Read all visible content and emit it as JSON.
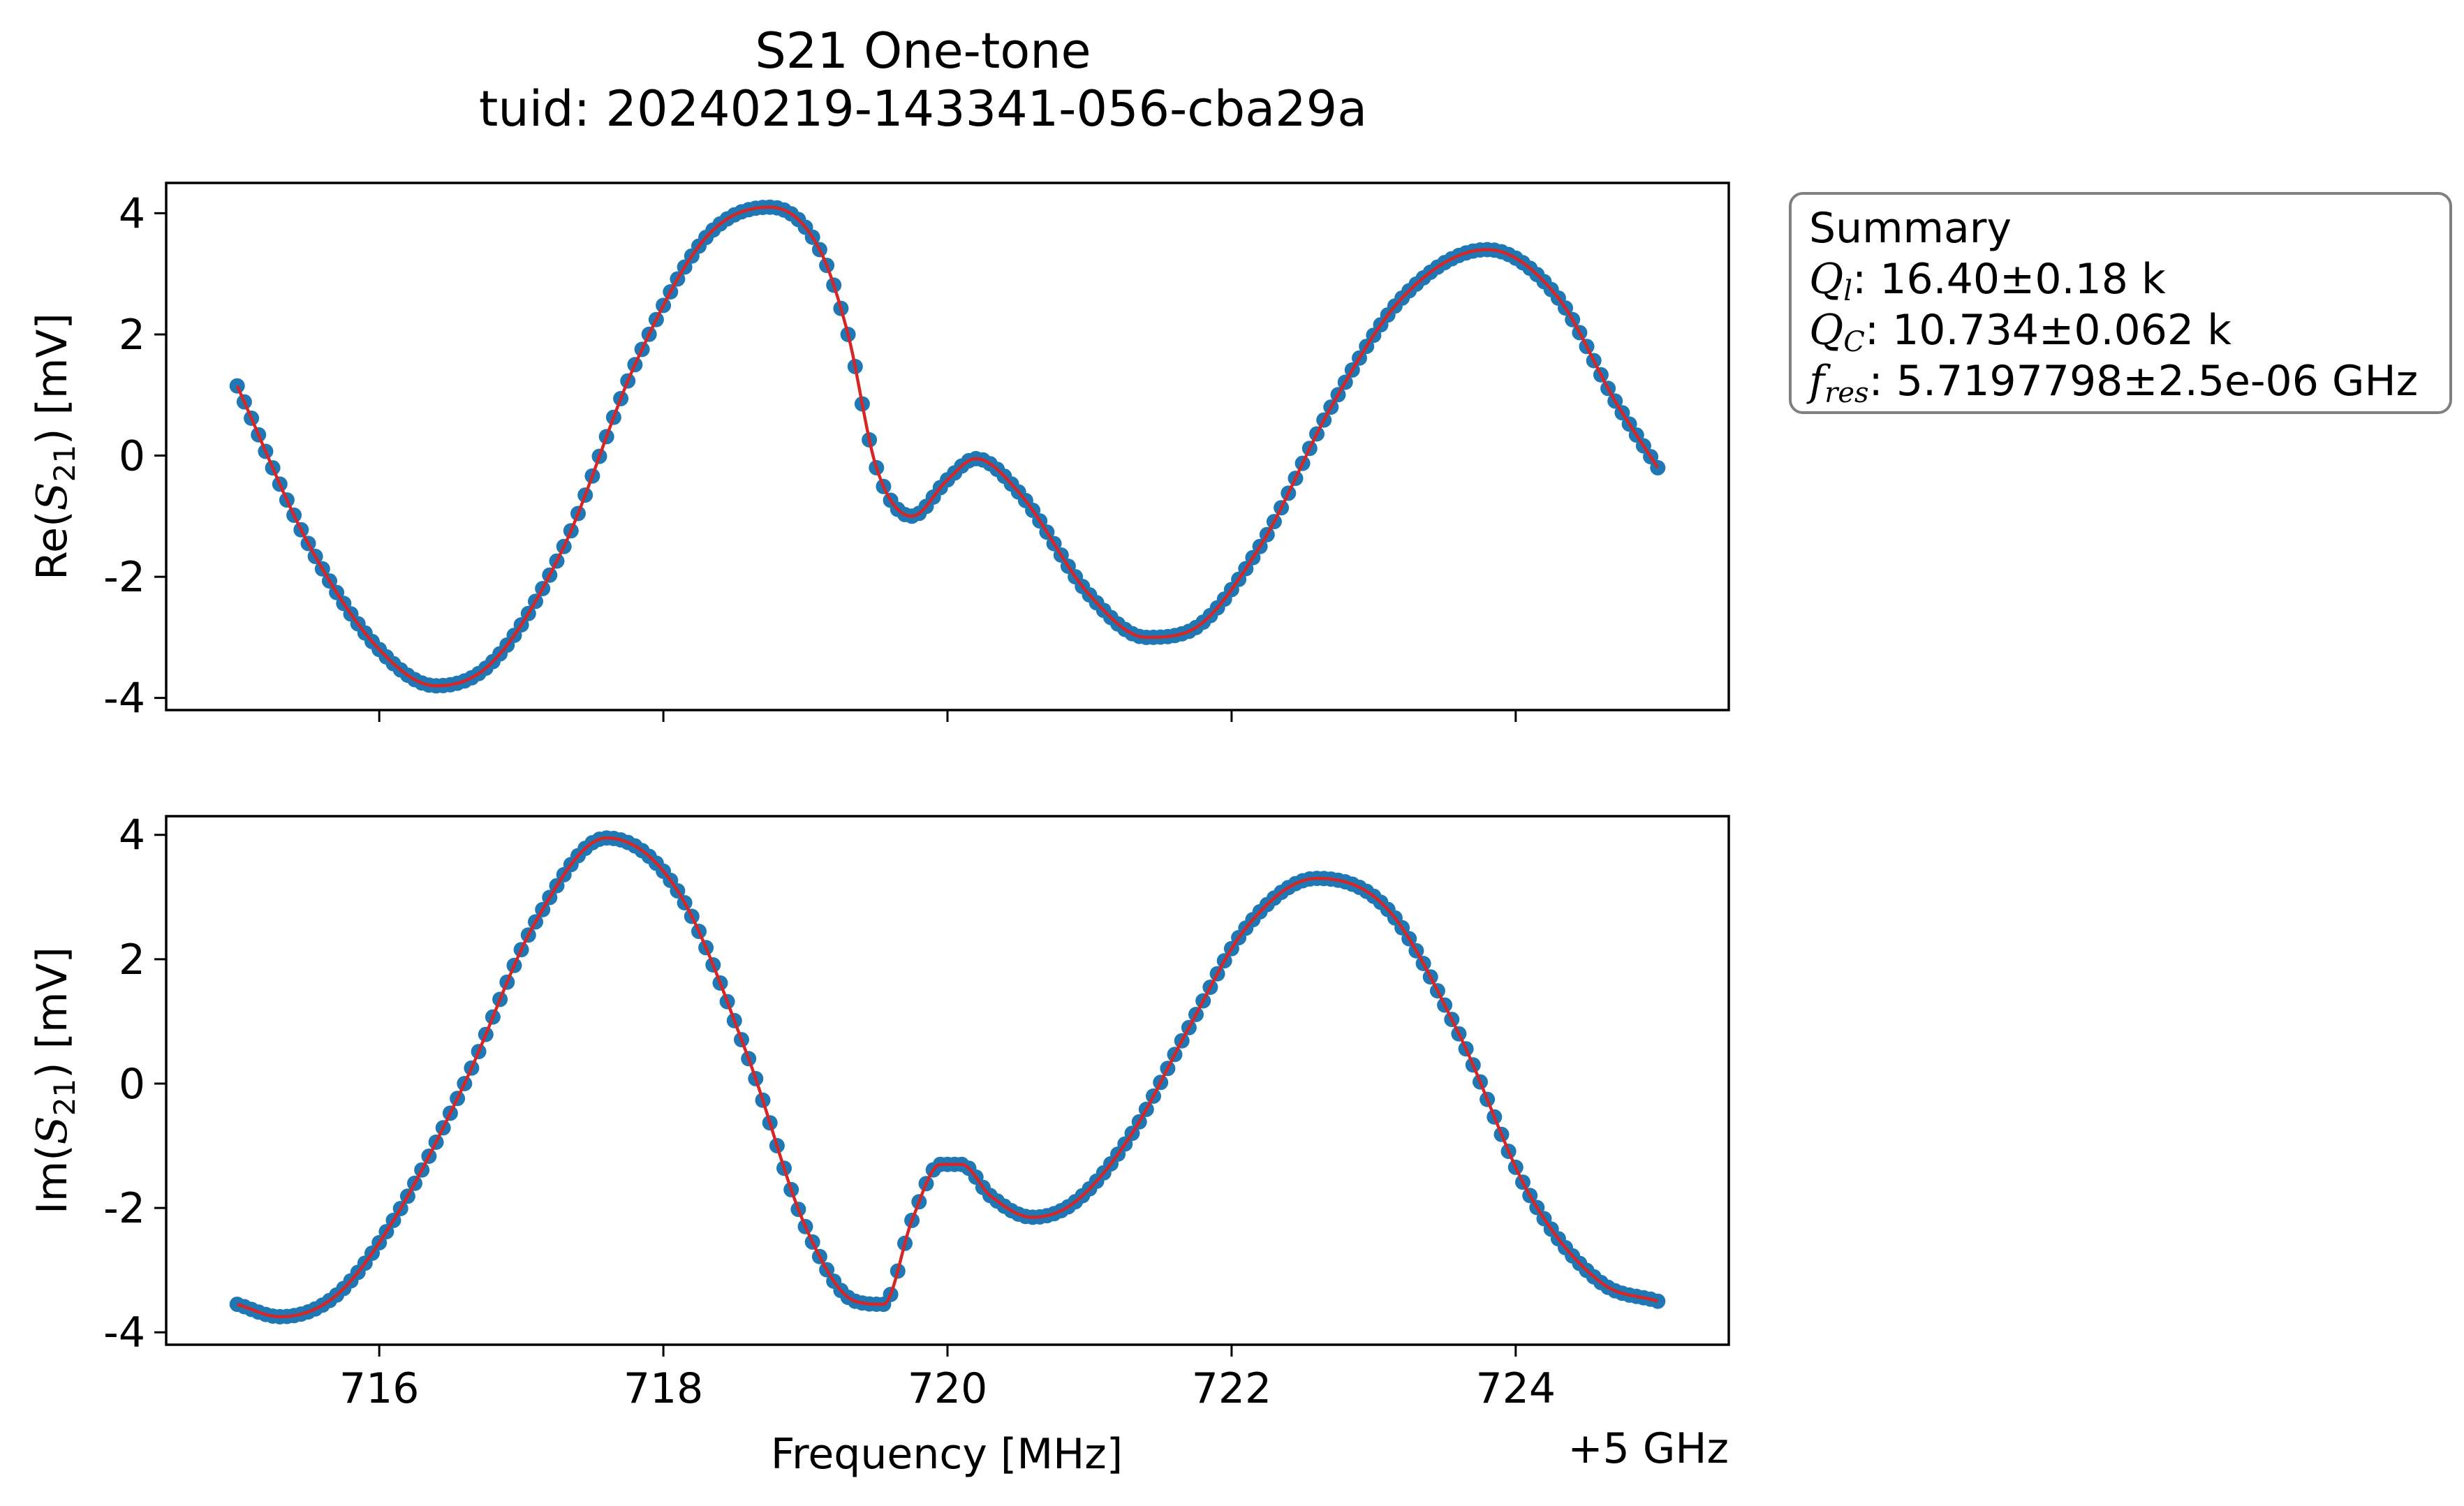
{
  "chart_data": {
    "type": "scatter",
    "title": "S21 One-tone",
    "subtitle": "tuid: 20240219-143341-056-cba29a",
    "xlabel": "Frequency [MHz]",
    "x_offset_label": "+5 GHz",
    "xlim": [
      714.5,
      725.5
    ],
    "x_ticks": [
      716,
      718,
      720,
      722,
      724
    ],
    "x_tick_labels": [
      "716",
      "718",
      "720",
      "722",
      "724"
    ],
    "points_per_series": 201,
    "data_color": "#1f77b4",
    "fit_color": "#d62728",
    "legend": "none",
    "grid": false,
    "summary": {
      "heading": "Summary",
      "ql_value": ": 16.40±0.18 k",
      "qc_value": ": 10.734±0.062 k",
      "fres_value": ": 5.7197798±2.5e-06 GHz"
    },
    "panels": [
      {
        "ylabel_prefix": "Re(",
        "ylabel_suffix": ") [mV]",
        "ylim": [
          -4.2,
          4.5
        ],
        "y_ticks": [
          -4,
          -2,
          0,
          2,
          4
        ],
        "y_tick_labels": [
          "-4",
          "-2",
          "0",
          "2",
          "4"
        ],
        "series": [
          {
            "role": "data + fit",
            "x": [
              715.0,
              715.5,
              716.0,
              716.4,
              716.8,
              717.3,
              717.8,
              718.3,
              718.75,
              719.1,
              719.3,
              719.5,
              719.75,
              720.0,
              720.2,
              720.5,
              721.0,
              721.4,
              721.7,
              722.2,
              722.7,
              723.2,
              723.8,
              724.3,
              724.7,
              725.0
            ],
            "y": [
              1.15,
              -1.45,
              -3.2,
              -3.8,
              -3.4,
              -1.5,
              1.5,
              3.6,
              4.1,
              3.4,
              2.0,
              -0.2,
              -1.0,
              -0.4,
              -0.05,
              -0.6,
              -2.3,
              -3.0,
              -2.9,
              -1.5,
              0.8,
              2.6,
              3.4,
              2.6,
              0.9,
              -0.2
            ]
          }
        ]
      },
      {
        "ylabel_prefix": "Im(",
        "ylabel_suffix": ") [mV]",
        "ylim": [
          -4.2,
          4.3
        ],
        "y_ticks": [
          -4,
          -2,
          0,
          2,
          4
        ],
        "y_tick_labels": [
          "-4",
          "-2",
          "0",
          "2",
          "4"
        ],
        "series": [
          {
            "role": "data + fit",
            "x": [
              715.0,
              715.3,
              715.7,
              716.1,
              716.6,
              717.1,
              717.6,
              718.1,
              718.6,
              719.0,
              719.35,
              719.55,
              719.75,
              719.95,
              720.1,
              720.3,
              720.6,
              720.9,
              721.3,
              721.7,
              722.1,
              722.6,
              723.1,
              723.6,
              724.1,
              724.6,
              725.0
            ],
            "y": [
              -3.55,
              -3.75,
              -3.4,
              -2.2,
              0.0,
              2.6,
              3.95,
              3.1,
              0.4,
              -2.3,
              -3.5,
              -3.55,
              -2.2,
              -1.3,
              -1.3,
              -1.8,
              -2.15,
              -1.9,
              -0.8,
              0.9,
              2.5,
              3.3,
              2.8,
              0.8,
              -1.8,
              -3.2,
              -3.5
            ]
          }
        ]
      }
    ]
  }
}
